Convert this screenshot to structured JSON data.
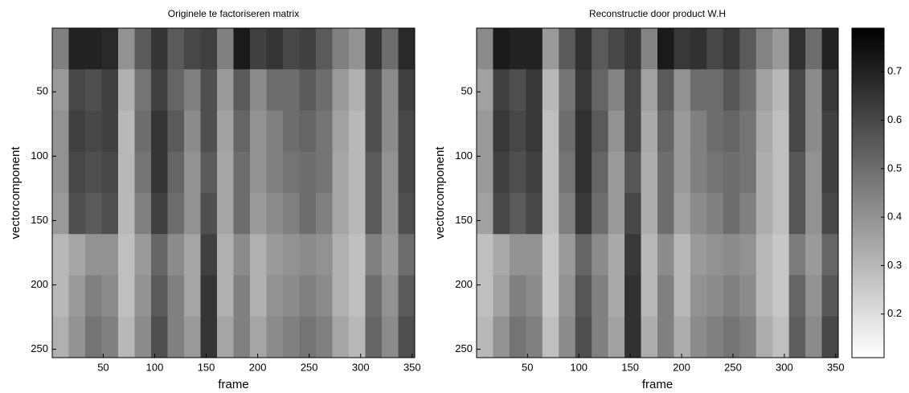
{
  "chart_data": [
    {
      "type": "heatmap",
      "title": "Originele te factoriseren matrix",
      "xlabel": "frame",
      "ylabel": "vectorcomponent",
      "xlim": [
        0.5,
        352.5
      ],
      "ylim": [
        256.5,
        0.5
      ],
      "xticks": [
        50,
        100,
        150,
        200,
        250,
        300,
        350
      ],
      "yticks": [
        50,
        100,
        150,
        200,
        250
      ],
      "colormap": "gray_r",
      "clim": [
        0.11,
        0.79
      ],
      "xbins": [
        0.5,
        16.5,
        32.5,
        48.5,
        64.5,
        80.5,
        96.5,
        112.5,
        128.5,
        144.5,
        160.5,
        176.5,
        192.5,
        208.5,
        224.5,
        240.5,
        256.5,
        272.5,
        288.5,
        304.5,
        320.5,
        336.5,
        352.5
      ],
      "ybins": [
        0.5,
        32.5,
        64.5,
        96.5,
        128.5,
        160.5,
        192.5,
        224.5,
        256.5
      ],
      "values": [
        [
          0.45,
          0.7,
          0.7,
          0.68,
          0.4,
          0.55,
          0.65,
          0.55,
          0.6,
          0.62,
          0.45,
          0.72,
          0.62,
          0.65,
          0.6,
          0.62,
          0.55,
          0.45,
          0.4,
          0.65,
          0.5,
          0.68
        ],
        [
          0.38,
          0.6,
          0.58,
          0.62,
          0.32,
          0.48,
          0.62,
          0.52,
          0.45,
          0.58,
          0.38,
          0.55,
          0.42,
          0.5,
          0.5,
          0.55,
          0.5,
          0.38,
          0.32,
          0.58,
          0.42,
          0.62
        ],
        [
          0.4,
          0.62,
          0.6,
          0.62,
          0.3,
          0.5,
          0.65,
          0.55,
          0.42,
          0.58,
          0.36,
          0.52,
          0.4,
          0.45,
          0.5,
          0.52,
          0.48,
          0.36,
          0.3,
          0.58,
          0.42,
          0.6
        ],
        [
          0.4,
          0.6,
          0.58,
          0.6,
          0.3,
          0.48,
          0.65,
          0.52,
          0.4,
          0.55,
          0.35,
          0.5,
          0.4,
          0.45,
          0.48,
          0.5,
          0.48,
          0.35,
          0.3,
          0.55,
          0.4,
          0.6
        ],
        [
          0.38,
          0.58,
          0.55,
          0.58,
          0.3,
          0.45,
          0.62,
          0.5,
          0.4,
          0.58,
          0.35,
          0.5,
          0.38,
          0.42,
          0.45,
          0.5,
          0.45,
          0.35,
          0.3,
          0.55,
          0.4,
          0.58
        ],
        [
          0.3,
          0.35,
          0.4,
          0.4,
          0.28,
          0.38,
          0.52,
          0.42,
          0.35,
          0.62,
          0.32,
          0.42,
          0.32,
          0.38,
          0.4,
          0.42,
          0.4,
          0.32,
          0.28,
          0.45,
          0.38,
          0.5
        ],
        [
          0.3,
          0.38,
          0.45,
          0.42,
          0.28,
          0.4,
          0.55,
          0.45,
          0.35,
          0.65,
          0.32,
          0.45,
          0.32,
          0.4,
          0.42,
          0.45,
          0.42,
          0.32,
          0.28,
          0.5,
          0.4,
          0.55
        ],
        [
          0.32,
          0.4,
          0.48,
          0.45,
          0.3,
          0.42,
          0.58,
          0.45,
          0.38,
          0.65,
          0.35,
          0.45,
          0.35,
          0.42,
          0.45,
          0.48,
          0.45,
          0.35,
          0.3,
          0.52,
          0.42,
          0.58
        ]
      ]
    },
    {
      "type": "heatmap",
      "title": "Reconstructie door product W.H",
      "xlabel": "frame",
      "ylabel": "vectorcomponent",
      "xlim": [
        0.5,
        352.5
      ],
      "ylim": [
        256.5,
        0.5
      ],
      "xticks": [
        50,
        100,
        150,
        200,
        250,
        300,
        350
      ],
      "yticks": [
        50,
        100,
        150,
        200,
        250
      ],
      "colormap": "gray_r",
      "clim": [
        0.11,
        0.79
      ],
      "colorbar_ticks": [
        0.2,
        0.3,
        0.4,
        0.5,
        0.6,
        0.7
      ],
      "xbins": [
        0.5,
        16.5,
        32.5,
        48.5,
        64.5,
        80.5,
        96.5,
        112.5,
        128.5,
        144.5,
        160.5,
        176.5,
        192.5,
        208.5,
        224.5,
        240.5,
        256.5,
        272.5,
        288.5,
        304.5,
        320.5,
        336.5,
        352.5
      ],
      "ybins": [
        0.5,
        32.5,
        64.5,
        96.5,
        128.5,
        160.5,
        192.5,
        224.5,
        256.5
      ],
      "values": [
        [
          0.42,
          0.72,
          0.7,
          0.7,
          0.38,
          0.55,
          0.66,
          0.55,
          0.6,
          0.64,
          0.44,
          0.72,
          0.64,
          0.66,
          0.6,
          0.64,
          0.55,
          0.44,
          0.38,
          0.66,
          0.5,
          0.7
        ],
        [
          0.36,
          0.62,
          0.58,
          0.64,
          0.3,
          0.48,
          0.64,
          0.52,
          0.44,
          0.6,
          0.36,
          0.55,
          0.4,
          0.5,
          0.5,
          0.56,
          0.5,
          0.36,
          0.3,
          0.6,
          0.42,
          0.64
        ],
        [
          0.38,
          0.64,
          0.6,
          0.64,
          0.28,
          0.5,
          0.66,
          0.55,
          0.4,
          0.6,
          0.34,
          0.52,
          0.38,
          0.45,
          0.5,
          0.52,
          0.48,
          0.34,
          0.28,
          0.6,
          0.42,
          0.62
        ],
        [
          0.38,
          0.62,
          0.58,
          0.62,
          0.28,
          0.48,
          0.66,
          0.52,
          0.38,
          0.56,
          0.33,
          0.5,
          0.38,
          0.45,
          0.48,
          0.5,
          0.48,
          0.33,
          0.28,
          0.56,
          0.4,
          0.62
        ],
        [
          0.36,
          0.6,
          0.55,
          0.6,
          0.28,
          0.45,
          0.64,
          0.5,
          0.38,
          0.6,
          0.33,
          0.5,
          0.36,
          0.42,
          0.45,
          0.5,
          0.45,
          0.33,
          0.28,
          0.56,
          0.4,
          0.6
        ],
        [
          0.28,
          0.34,
          0.4,
          0.4,
          0.26,
          0.38,
          0.52,
          0.42,
          0.34,
          0.64,
          0.3,
          0.42,
          0.3,
          0.38,
          0.4,
          0.42,
          0.4,
          0.3,
          0.26,
          0.46,
          0.38,
          0.52
        ],
        [
          0.28,
          0.36,
          0.45,
          0.42,
          0.26,
          0.4,
          0.56,
          0.45,
          0.34,
          0.66,
          0.3,
          0.45,
          0.3,
          0.4,
          0.42,
          0.45,
          0.42,
          0.3,
          0.26,
          0.52,
          0.4,
          0.56
        ],
        [
          0.3,
          0.4,
          0.48,
          0.45,
          0.28,
          0.42,
          0.58,
          0.45,
          0.36,
          0.66,
          0.33,
          0.45,
          0.33,
          0.42,
          0.45,
          0.48,
          0.45,
          0.33,
          0.28,
          0.54,
          0.42,
          0.6
        ]
      ]
    }
  ]
}
